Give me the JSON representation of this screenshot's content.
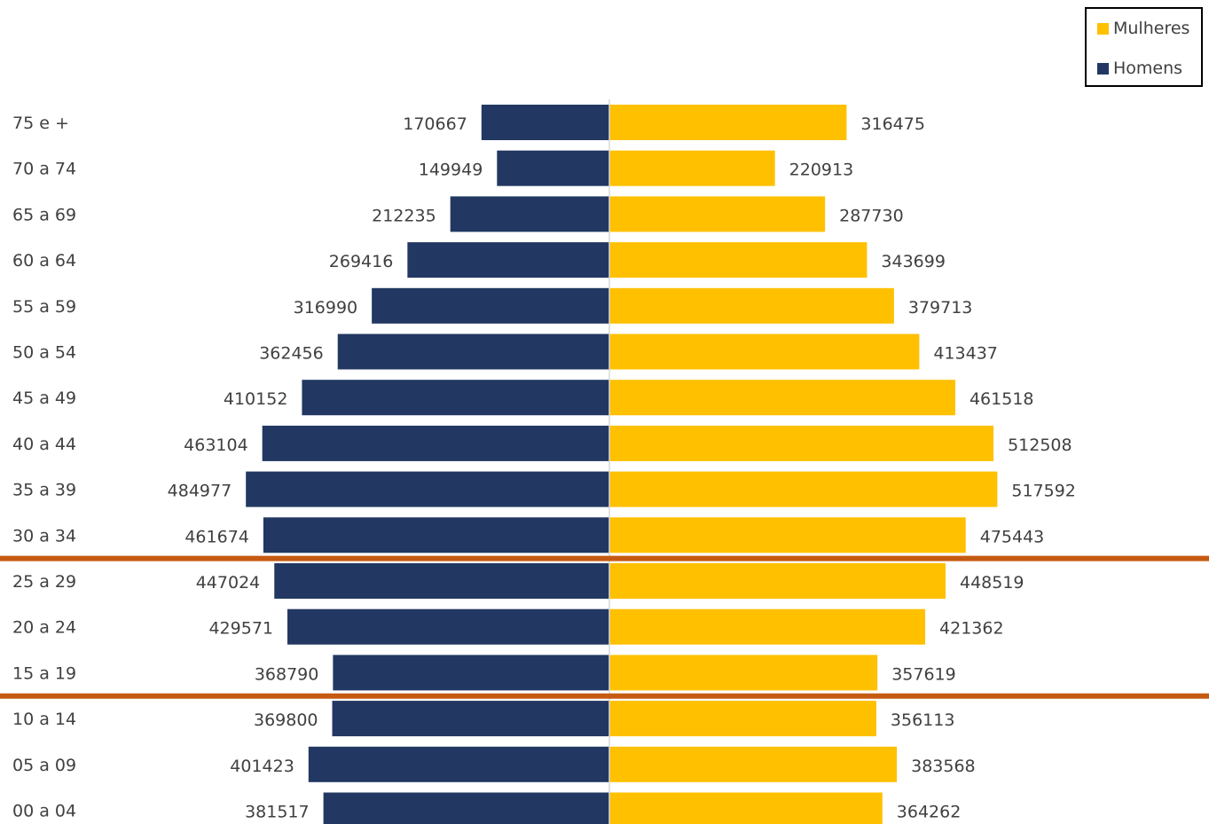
{
  "chart_data": {
    "type": "bar",
    "orientation": "horizontal",
    "categories": [
      "75 e +",
      "70 a 74",
      "65 a 69",
      "60 a 64",
      "55 a 59",
      "50 a 54",
      "45 a 49",
      "40 a 44",
      "35 a 39",
      "30 a 34",
      "25 a 29",
      "20 a 24",
      "15 a 19",
      "10 a 14",
      "05 a 09",
      "00 a 04"
    ],
    "series": [
      {
        "name": "Homens",
        "color": "#223862",
        "side": "left",
        "values": [
          170667,
          149949,
          212235,
          269416,
          316990,
          362456,
          410152,
          463104,
          484977,
          461674,
          447024,
          429571,
          368790,
          369800,
          401423,
          381517
        ]
      },
      {
        "name": "Mulheres",
        "color": "#FFC000",
        "side": "right",
        "values": [
          316475,
          220913,
          287730,
          343699,
          379713,
          413437,
          461518,
          512508,
          517592,
          475443,
          448519,
          421362,
          357619,
          356113,
          383568,
          364262
        ]
      }
    ],
    "highlight_range": {
      "from": "25 a 29",
      "to": "15 a 19",
      "color": "#C55A11"
    },
    "legend": {
      "position": "top-right",
      "order": [
        "Mulheres",
        "Homens"
      ]
    },
    "grid": false
  },
  "legend": {
    "women_label": "Mulheres",
    "men_label": "Homens",
    "women_color": "#FFC000",
    "men_color": "#223862"
  }
}
